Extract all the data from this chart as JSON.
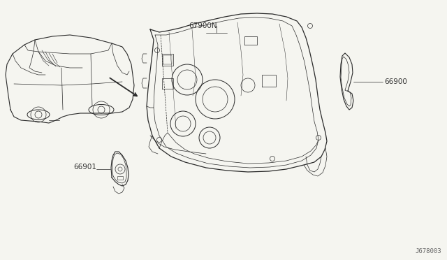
{
  "bg_color": "#f5f5f0",
  "line_color": "#2a2a2a",
  "label_color": "#333333",
  "diagram_id": "J678003",
  "label_67900N": "67900N",
  "label_66900": "66900",
  "label_66901": "66901",
  "label_fontsize": 7.5,
  "diagram_id_fontsize": 6.5
}
